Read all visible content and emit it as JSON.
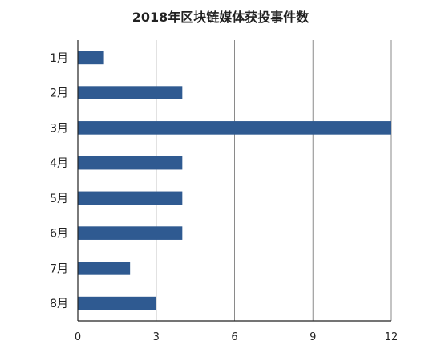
{
  "chart_data": {
    "type": "bar",
    "orientation": "horizontal",
    "title": "2018年区块链媒体获投事件数",
    "categories": [
      "1月",
      "2月",
      "3月",
      "4月",
      "5月",
      "6月",
      "7月",
      "8月"
    ],
    "values": [
      1,
      4,
      12,
      4,
      4,
      4,
      2,
      3
    ],
    "x_ticks": [
      0,
      3,
      6,
      9,
      12
    ],
    "xlim": [
      0,
      12
    ],
    "grid": true,
    "bar_color": "#2f5a91",
    "grid_color": "#8a8a8a",
    "axis_color": "#222222",
    "legend": "none"
  }
}
